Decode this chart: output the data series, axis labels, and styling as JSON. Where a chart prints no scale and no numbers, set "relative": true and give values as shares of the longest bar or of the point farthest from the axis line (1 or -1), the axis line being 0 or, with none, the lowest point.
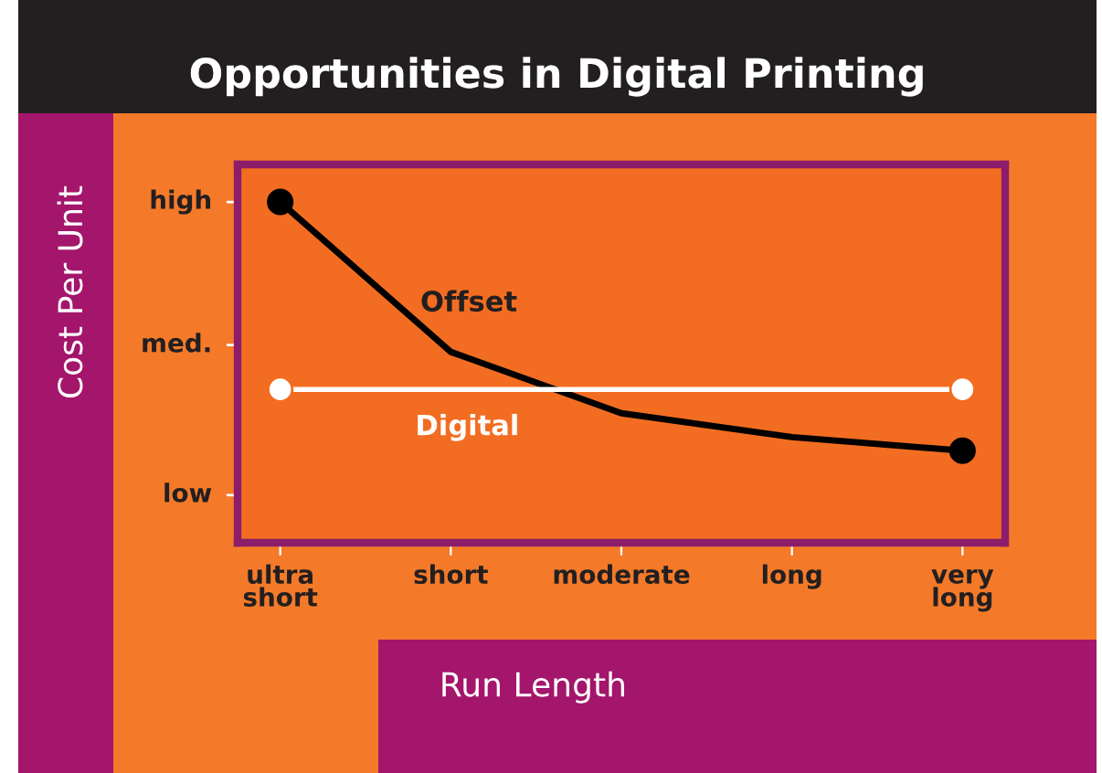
{
  "chart_data": {
    "type": "line",
    "title": "Opportunities in Digital Printing",
    "xlabel": "Run Length",
    "categories": [
      "ultra\nshort",
      "short",
      "moderate",
      "long",
      "very\nlong"
    ],
    "relative": true,
    "annotations": [
      "high",
      "med.",
      "low",
      "Cost Per Unit"
    ],
    "legend": false,
    "line_style": "solid",
    "series": [
      {
        "name": "Offset",
        "color": "#000000",
        "values": [
          1.0,
          0.56,
          0.38,
          0.31,
          0.27
        ]
      },
      {
        "name": "Digital",
        "color": "#ffffff",
        "values": [
          0.45,
          0.45,
          0.45,
          0.45,
          0.45
        ]
      },
      {
        "type": "scatter",
        "color": "#000000",
        "marker": "circle",
        "values": [
          1.0,
          null,
          null,
          null,
          0.27
        ]
      },
      {
        "type": "scatter",
        "color": "#ffffff",
        "marker": "circle",
        "values": [
          0.45,
          null,
          null,
          null,
          0.45
        ]
      }
    ]
  }
}
